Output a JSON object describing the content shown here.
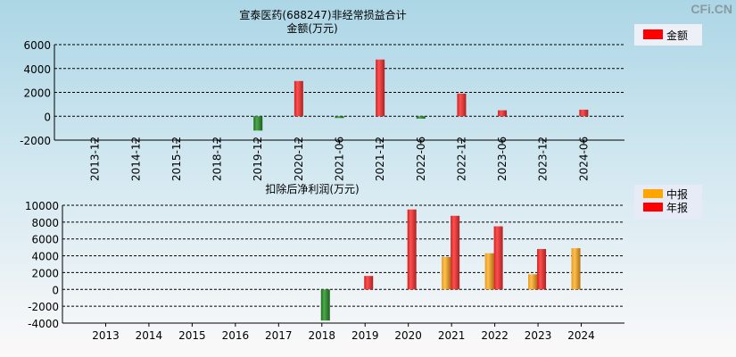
{
  "watermark": "CFi.CN",
  "chart_data": [
    {
      "type": "bar",
      "title": "宣泰医药(688247)非经常损益合计",
      "ylabel": "金额(万元)",
      "ylim": [
        -2000,
        6000
      ],
      "yticks": [
        6000,
        4000,
        2000,
        0,
        -2000
      ],
      "grid": true,
      "legend_placement": "top-right",
      "categories": [
        "2013-12",
        "2014-12",
        "2015-12",
        "2018-12",
        "2019-12",
        "2020-12",
        "2021-06",
        "2021-12",
        "2022-06",
        "2022-12",
        "2023-06",
        "2023-12",
        "2024-06"
      ],
      "series": [
        {
          "name": "金额",
          "values": [
            0,
            0,
            0,
            0,
            -1200,
            2950,
            -150,
            4750,
            -200,
            1900,
            500,
            0,
            550
          ]
        }
      ],
      "colors": {
        "positive": "#ff0000",
        "negative": "#2e8b2e"
      }
    },
    {
      "type": "bar",
      "title": "扣除后净利润(万元)",
      "ylim": [
        -4000,
        10000
      ],
      "yticks": [
        10000,
        8000,
        6000,
        4000,
        2000,
        0,
        -2000,
        -4000
      ],
      "grid": true,
      "legend_placement": "top-right",
      "categories": [
        "2013",
        "2014",
        "2015",
        "2016",
        "2017",
        "2018",
        "2019",
        "2020",
        "2021",
        "2022",
        "2023",
        "2024"
      ],
      "series": [
        {
          "name": "中报",
          "color": "#ffa500",
          "values": [
            null,
            null,
            null,
            null,
            null,
            null,
            null,
            null,
            3850,
            4300,
            1800,
            4900
          ]
        },
        {
          "name": "年报",
          "color": "#ff0000",
          "values": [
            null,
            null,
            null,
            null,
            null,
            -3700,
            1600,
            9500,
            8750,
            7500,
            4800,
            null
          ]
        }
      ],
      "colors": {
        "negative": "#2e8b2e"
      }
    }
  ]
}
